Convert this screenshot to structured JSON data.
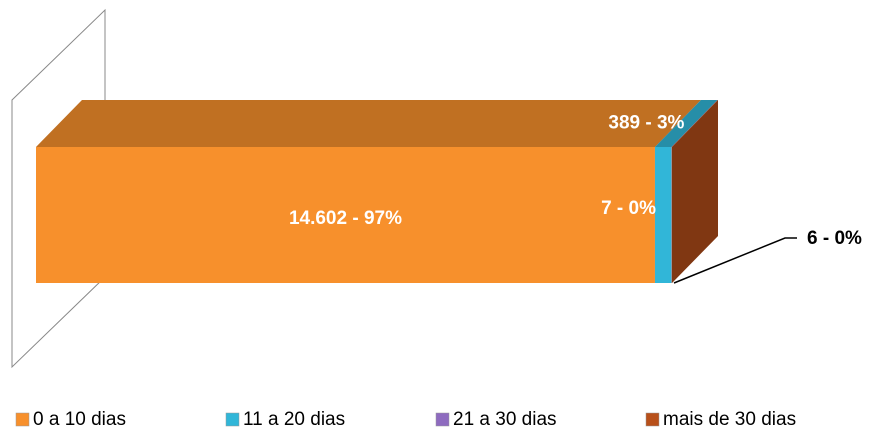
{
  "chart_data": {
    "type": "stacked-bar-3d",
    "series": [
      {
        "name": "0 a 10 dias",
        "color": "#f7902c",
        "values": [
          14602
        ],
        "value_labels": [
          "14.602 - 97%"
        ]
      },
      {
        "name": "11 a 20 dias",
        "color": "#31b6d8",
        "values": [
          389
        ],
        "value_labels": [
          "389 - 3%"
        ]
      },
      {
        "name": "21 a 30 dias",
        "color": "#8e6bbf",
        "values": [
          7
        ],
        "value_labels": [
          "7 - 0%"
        ]
      },
      {
        "name": "mais de 30 dias",
        "color": "#b8501a",
        "values": [
          6
        ],
        "value_labels": [
          "6 - 0%"
        ]
      }
    ]
  }
}
